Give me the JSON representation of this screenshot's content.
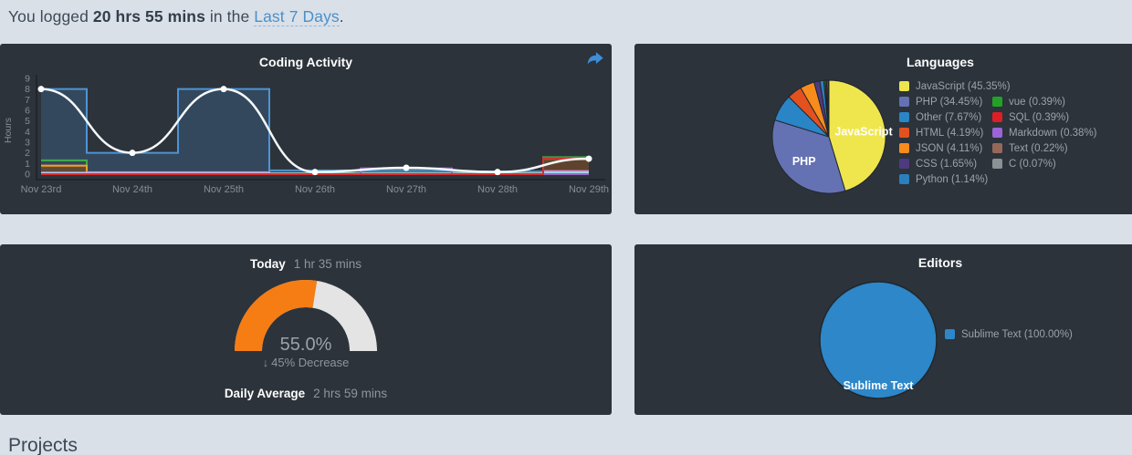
{
  "header": {
    "prefix": "You logged ",
    "total_time": "20 hrs 55 mins",
    "middle": " in the ",
    "range_link": "Last 7 Days",
    "suffix": "."
  },
  "projects_heading": "Projects",
  "cards": {
    "coding_activity": {
      "title": "Coding Activity"
    },
    "languages": {
      "title": "Languages"
    },
    "today": {
      "label": "Today",
      "time": "1 hr 35 mins",
      "percent": "55.0%",
      "delta": "45% Decrease",
      "delta_direction": "down",
      "delta_arrow": "↓",
      "daily_average_label": "Daily Average",
      "daily_average_time": "2 hrs 59 mins"
    },
    "editors": {
      "title": "Editors"
    }
  },
  "colors": {
    "page_background": "#dae0e8",
    "card_background": "#2c333b",
    "link_blue": "#4a90c9",
    "share_icon_blue": "#3e8ed8",
    "axis_text": "#848d95"
  },
  "chart_data": [
    {
      "id": "coding_activity",
      "type": "line",
      "title": "Coding Activity",
      "ylabel": "Hours",
      "ylim": [
        0,
        9
      ],
      "yticks": [
        0,
        1,
        2,
        3,
        4,
        5,
        6,
        7,
        8,
        9
      ],
      "grid": false,
      "categories": [
        "Nov 23rd",
        "Nov 24th",
        "Nov 25th",
        "Nov 26th",
        "Nov 27th",
        "Nov 28th",
        "Nov 29th"
      ],
      "series": [
        {
          "name": "total-hours-step",
          "style": "step-area",
          "color": "#4e94d4",
          "fill": "rgba(78,148,212,0.22)",
          "values": [
            8,
            2,
            8,
            0.35,
            0.3,
            0.25,
            0.3
          ]
        },
        {
          "name": "series-brown",
          "style": "step-area",
          "color": "#8a5a33",
          "fill": "rgba(115,75,42,0.7)",
          "values": [
            0.75,
            0,
            0,
            0,
            0,
            0,
            1.4
          ]
        },
        {
          "name": "series-green",
          "style": "step",
          "color": "#3fae49",
          "values": [
            1.3,
            0.12,
            0,
            0,
            0.5,
            0.08,
            1.6
          ]
        },
        {
          "name": "series-orange",
          "style": "step",
          "color": "#f1a02c",
          "values": [
            0.8,
            0.08,
            0.05,
            0.08,
            0.08,
            0.08,
            0.1
          ]
        },
        {
          "name": "series-pink",
          "style": "step",
          "color": "#e87fc0",
          "values": [
            0.15,
            0.18,
            0.18,
            0.05,
            0.05,
            0.05,
            0.28
          ]
        },
        {
          "name": "series-lightblue",
          "style": "step",
          "color": "#9adcf0",
          "values": [
            0.07,
            0.05,
            0.05,
            0.05,
            0.05,
            0.05,
            0.15
          ]
        },
        {
          "name": "series-purple",
          "style": "step",
          "color": "#9467bd",
          "values": [
            0,
            0,
            0,
            0,
            0.55,
            0,
            0
          ]
        },
        {
          "name": "series-red",
          "style": "step",
          "color": "#d62f2f",
          "values": [
            0,
            0,
            0,
            0,
            0,
            0,
            1.5
          ]
        },
        {
          "name": "daily-trend",
          "style": "smooth-line",
          "color": "#f6f9fb",
          "dots": true,
          "values": [
            8,
            2,
            8,
            0.2,
            0.6,
            0.2,
            1.45
          ]
        }
      ]
    },
    {
      "id": "languages",
      "type": "pie",
      "title": "Languages",
      "legend_position": "right",
      "inner_labels": [
        "JavaScript",
        "PHP"
      ],
      "slices": [
        {
          "label": "JavaScript",
          "value": 45.35,
          "color": "#efe64e"
        },
        {
          "label": "PHP",
          "value": 34.45,
          "color": "#6472b4"
        },
        {
          "label": "Other",
          "value": 7.67,
          "color": "#2a85c7"
        },
        {
          "label": "HTML",
          "value": 4.19,
          "color": "#e3511f"
        },
        {
          "label": "JSON",
          "value": 4.11,
          "color": "#f78c1c"
        },
        {
          "label": "CSS",
          "value": 1.65,
          "color": "#4f3a80"
        },
        {
          "label": "Python",
          "value": 1.14,
          "color": "#2a7fbe"
        },
        {
          "label": "vue",
          "value": 0.39,
          "color": "#23a127"
        },
        {
          "label": "SQL",
          "value": 0.39,
          "color": "#dc1f26"
        },
        {
          "label": "Markdown",
          "value": 0.38,
          "color": "#9c64d8"
        },
        {
          "label": "Text",
          "value": 0.22,
          "color": "#96685a"
        },
        {
          "label": "C",
          "value": 0.07,
          "color": "#8c9196"
        }
      ]
    },
    {
      "id": "today_gauge",
      "type": "gauge",
      "value": 55.0,
      "max": 100,
      "value_label": "55.0%",
      "delta": "45% Decrease",
      "delta_direction": "down",
      "fill_color": "#f57d14",
      "track_color": "#e4e4e4"
    },
    {
      "id": "editors",
      "type": "pie",
      "title": "Editors",
      "legend_position": "right",
      "inner_labels": [
        "Sublime Text"
      ],
      "slices": [
        {
          "label": "Sublime Text",
          "value": 100.0,
          "color": "#2d87c8"
        }
      ]
    }
  ]
}
